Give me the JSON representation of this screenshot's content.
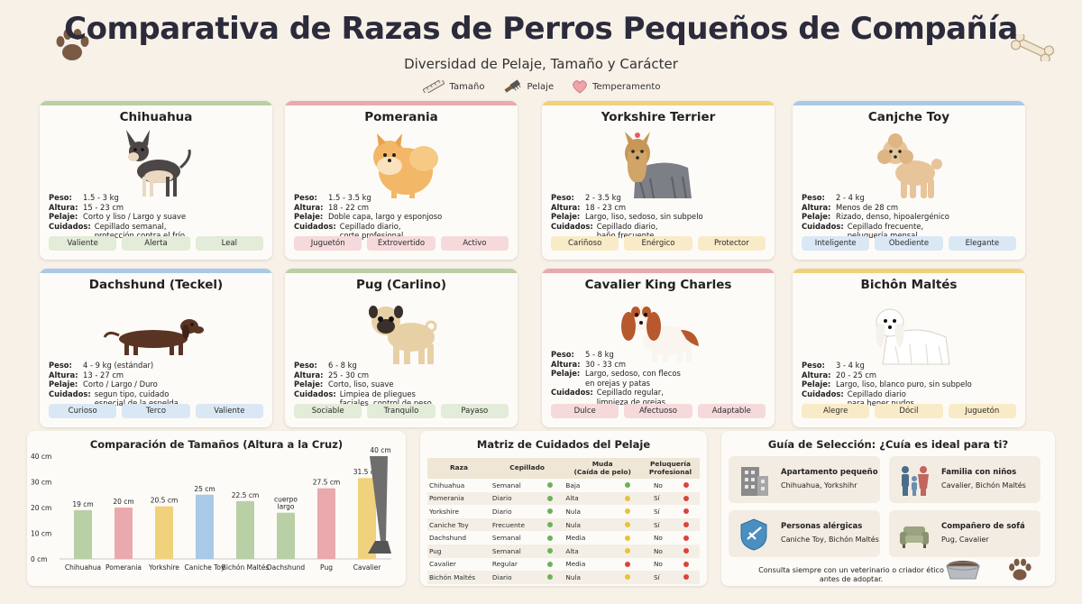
{
  "header": {
    "title": "Comparativa de Razas de Perros Pequeños de Compañía",
    "subtitle": "Diversidad de Pelaje, Tamaño y Carácter"
  },
  "legend": {
    "items": [
      {
        "label": "Tamaño",
        "icon": "ruler-icon"
      },
      {
        "label": "Pelaje",
        "icon": "brush-icon"
      },
      {
        "label": "Temperamento",
        "icon": "heart-icon"
      }
    ]
  },
  "fact_labels": {
    "weight": "Peso:",
    "height": "Altura:",
    "coat": "Pelaje:",
    "care": "Cuidados:"
  },
  "breeds": [
    {
      "name": "Chihuahua",
      "accent": "#b9cfa6",
      "trait_bg": "#e3ebd9",
      "weight": "1.5 - 3 kg",
      "height": "15 - 23 cm",
      "coat": "Corto y liso / Largo y suave",
      "care": "Cepillado semanal,\nprotección contra el frío",
      "traits": [
        "Valiente",
        "Alerta",
        "Leal"
      ]
    },
    {
      "name": "Pomerania",
      "accent": "#e9a9ad",
      "trait_bg": "#f6dadb",
      "weight": "1.5 - 3.5 kg",
      "height": "18 - 22 cm",
      "coat": "Doble capa, largo y esponjoso",
      "care": "Cepillado diario,\ncorte profesional",
      "traits": [
        "Juguetón",
        "Extrovertido",
        "Activo"
      ]
    },
    {
      "name": "Yorkshire Terrier",
      "accent": "#f0d27c",
      "trait_bg": "#f9ebc7",
      "weight": "2 - 3.5 kg",
      "height": "18 - 23 cm",
      "coat": "Largo, liso, sedoso, sin subpelo",
      "care": "Cepillado diario,\nbaño frecuente",
      "traits": [
        "Cariñoso",
        "Enérgico",
        "Protector"
      ]
    },
    {
      "name": "Canjche Toy",
      "accent": "#a9c9e8",
      "trait_bg": "#dae8f5",
      "weight": "2 - 4 kg",
      "height": "Menos de 28 cm",
      "coat": "Rizado, denso, hipoalergénico",
      "care": "Cepillado frecuente,\npeluquería mensal",
      "traits": [
        "Inteligente",
        "Obediente",
        "Elegante"
      ]
    },
    {
      "name": "Dachshund (Teckel)",
      "accent": "#a9c9e8",
      "trait_bg": "#dae8f5",
      "weight": "4 - 9 kg (estándar)",
      "height": "13 - 27 cm",
      "coat": "Corto / Largo / Duro",
      "care": "segun tipo, cuidado\nespecial de la espelda",
      "traits": [
        "Curioso",
        "Terco",
        "Valiente"
      ]
    },
    {
      "name": "Pug (Carlino)",
      "accent": "#b9cfa6",
      "trait_bg": "#e3ebd9",
      "weight": "6 - 8 kg",
      "height": "25 - 30 cm",
      "coat": "Corto, liso, suave",
      "care": "Limpiea de pliegues\nfaciales, control de peso",
      "traits": [
        "Sociable",
        "Tranquilo",
        "Payaso"
      ]
    },
    {
      "name": "Cavalier King Charles",
      "accent": "#e9a9ad",
      "trait_bg": "#f6dadb",
      "weight": "5 - 8 kg",
      "height": "30 - 33 cm",
      "coat": "Largo, sedoso, con flecos\nen orejas y patas",
      "care": "Cepillado regular,\nlimpieza de orejas",
      "traits": [
        "Dulce",
        "Afectuoso",
        "Adaptable"
      ]
    },
    {
      "name": "Bichôn Maltés",
      "accent": "#f0d27c",
      "trait_bg": "#f9ebc7",
      "weight": "3 - 4 kg",
      "height": "20 - 25 cm",
      "coat": "Largo, liso, blanco puro, sin subpelo",
      "care": "Cepillado diario\npara hener nudos",
      "traits": [
        "Alegre",
        "Dócil",
        "Juguetón"
      ]
    }
  ],
  "size_chart": {
    "title": "Comparación de Tamaños (Altura a la Cruz)",
    "unit": "cm",
    "reference_label": "40 cm",
    "chart_data": {
      "type": "bar",
      "categories": [
        "Chihuahua",
        "Pomerania",
        "Yorkshire",
        "Caniche Toy",
        "Bichón Maltés",
        "Dachshund",
        "Pug",
        "Cavalier"
      ],
      "values": [
        19,
        20,
        20.5,
        25,
        22.5,
        18,
        27.5,
        31.5
      ],
      "value_labels": [
        "19 cm",
        "20 cm",
        "20.5 cm",
        "25 cm",
        "22.5 cm",
        "cuerpo\nlargo",
        "27.5 cm",
        "31.5 cm"
      ],
      "colors": [
        "#b9cfa6",
        "#e9a9ad",
        "#f0d27c",
        "#a9c9e8",
        "#b9cfa6",
        "#b9cfa6",
        "#e9a9ad",
        "#f0d27c"
      ],
      "yticks": [
        "0 cm",
        "10 cm",
        "20 cm",
        "30 cm",
        "40 cm"
      ],
      "ylim": [
        0,
        40
      ],
      "grid": false
    }
  },
  "care_matrix": {
    "title": "Matriz de Cuidados del Pelaje",
    "headers": [
      "Raza",
      "Cepillado",
      "Muda\n(Caída de pelo)",
      "Peluquería\nProfesional"
    ],
    "rows": [
      {
        "breed": "Chihuahua",
        "brushing": "Semanal",
        "b_color": "#6fb05a",
        "shedding": "Baja",
        "s_color": "#6fb05a",
        "groom": "No",
        "g_color": "#d9443b"
      },
      {
        "breed": "Pomerania",
        "brushing": "Diario",
        "b_color": "#6fb05a",
        "shedding": "Alta",
        "s_color": "#e8c23a",
        "groom": "Sí",
        "g_color": "#d9443b"
      },
      {
        "breed": "Yorkshire",
        "brushing": "Diario",
        "b_color": "#6fb05a",
        "shedding": "Nula",
        "s_color": "#e8c23a",
        "groom": "Sí",
        "g_color": "#d9443b"
      },
      {
        "breed": "Caniche Toy",
        "brushing": "Frecuente",
        "b_color": "#6fb05a",
        "shedding": "Nula",
        "s_color": "#e8c23a",
        "groom": "Sí",
        "g_color": "#d9443b"
      },
      {
        "breed": "Dachshund",
        "brushing": "Semanal",
        "b_color": "#6fb05a",
        "shedding": "Media",
        "s_color": "#e8c23a",
        "groom": "No",
        "g_color": "#d9443b"
      },
      {
        "breed": "Pug",
        "brushing": "Semanal",
        "b_color": "#6fb05a",
        "shedding": "Alta",
        "s_color": "#e8c23a",
        "groom": "No",
        "g_color": "#d9443b"
      },
      {
        "breed": "Cavalier",
        "brushing": "Regular",
        "b_color": "#6fb05a",
        "shedding": "Media",
        "s_color": "#d9443b",
        "groom": "No",
        "g_color": "#d9443b"
      },
      {
        "breed": "Bichón Maltés",
        "brushing": "Diario",
        "b_color": "#6fb05a",
        "shedding": "Nula",
        "s_color": "#e8c23a",
        "groom": "Sí",
        "g_color": "#d9443b"
      }
    ]
  },
  "guide": {
    "title": "Guía de Selección: ¿Cuía es ideal para ti?",
    "options": [
      {
        "title": "Apartamento pequeño",
        "text": "Chihuahua, Yorkshihr",
        "icon": "building-icon"
      },
      {
        "title": "Familia con niños",
        "text": "Cavalier, Bichón Maltés",
        "icon": "family-icon"
      },
      {
        "title": "Personas alérgicas",
        "text": "Caniche Toy, Bichón Maltés",
        "icon": "shield-icon"
      },
      {
        "title": "Compañero de sofá",
        "text": "Pug, Cavalier",
        "icon": "sofa-icon"
      }
    ],
    "note": "Consulta siempre con un veterinario o criador ético\nantes de adoptar."
  }
}
